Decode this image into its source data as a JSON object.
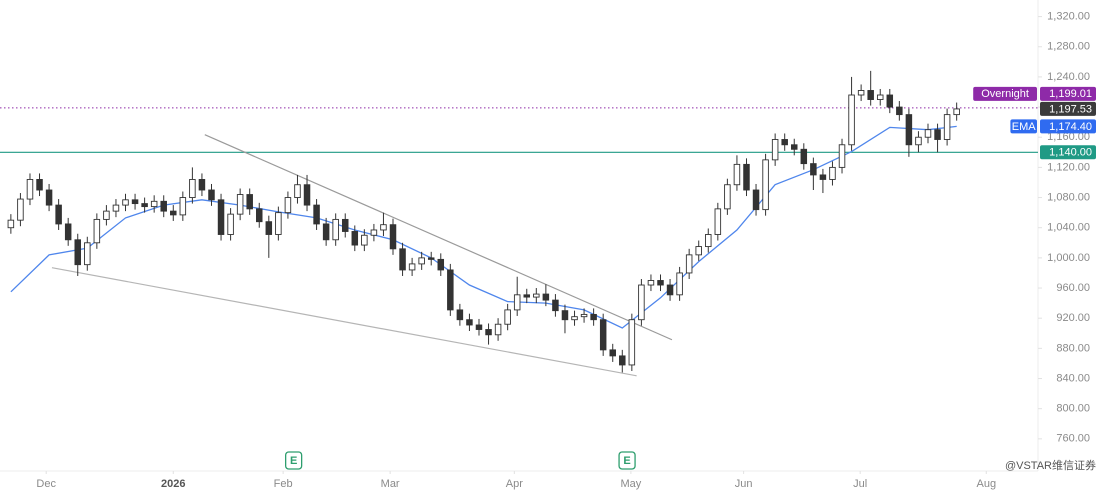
{
  "chart_data": {
    "type": "candlestick",
    "xlim": [
      -0.3,
      107.2
    ],
    "xticks": [
      {
        "value": 3.7,
        "label": "Dec"
      },
      {
        "value": 17,
        "label": "2026"
      },
      {
        "value": 28.5,
        "label": "Feb"
      },
      {
        "value": 39.7,
        "label": "Mar"
      },
      {
        "value": 52.7,
        "label": "Apr"
      },
      {
        "value": 64.9,
        "label": "May"
      },
      {
        "value": 76.7,
        "label": "Jun"
      },
      {
        "value": 88.9,
        "label": "Jul"
      },
      {
        "value": 102.1,
        "label": "Aug"
      }
    ],
    "ylim": [
      720,
      1342
    ],
    "yticks": [
      {
        "value": 760,
        "label": "760.00"
      },
      {
        "value": 800,
        "label": "800.00"
      },
      {
        "value": 840,
        "label": "840.00"
      },
      {
        "value": 880,
        "label": "880.00"
      },
      {
        "value": 920,
        "label": "920.00"
      },
      {
        "value": 960,
        "label": "960.00"
      },
      {
        "value": 1000,
        "label": "1,000.00"
      },
      {
        "value": 1040,
        "label": "1,040.00"
      },
      {
        "value": 1080,
        "label": "1,080.00"
      },
      {
        "value": 1120,
        "label": "1,120.00"
      },
      {
        "value": 1160,
        "label": "1,160.00"
      },
      {
        "value": 1200,
        "label": "1,200.00"
      },
      {
        "value": 1240,
        "label": "1,240.00"
      },
      {
        "value": 1280,
        "label": "1,280.00"
      },
      {
        "value": 1320,
        "label": "1,320.00"
      }
    ],
    "up_color": "#ffffff",
    "down_color": "#333333",
    "wick_color": "#333333",
    "open": [
      1040,
      1050,
      1078,
      1104,
      1090,
      1070,
      1045,
      1024,
      991,
      1020,
      1051,
      1062,
      1070,
      1077,
      1072,
      1068,
      1075,
      1062,
      1057,
      1080,
      1104,
      1090,
      1077,
      1031,
      1058,
      1084,
      1065,
      1048,
      1031,
      1060,
      1080,
      1097,
      1070,
      1045,
      1024,
      1051,
      1035,
      1017,
      1030,
      1037,
      1044,
      1012,
      984,
      992,
      1000,
      998,
      984,
      931,
      918,
      911,
      905,
      898,
      912,
      931,
      951,
      948,
      952,
      944,
      930,
      918,
      922,
      925,
      918,
      878,
      870,
      858,
      918,
      964,
      970,
      964,
      951,
      980,
      1004,
      1015,
      1031,
      1065,
      1097,
      1124,
      1090,
      1064,
      1130,
      1157,
      1150,
      1144,
      1125,
      1110,
      1104,
      1120,
      1150,
      1216,
      1222,
      1210,
      1216,
      1200,
      1190,
      1150,
      1160,
      1170,
      1157,
      1190
    ],
    "high": [
      1058,
      1086,
      1112,
      1112,
      1098,
      1078,
      1053,
      1032,
      1028,
      1059,
      1070,
      1078,
      1085,
      1085,
      1080,
      1083,
      1083,
      1070,
      1088,
      1120,
      1112,
      1098,
      1085,
      1066,
      1092,
      1092,
      1073,
      1056,
      1068,
      1088,
      1110,
      1110,
      1078,
      1053,
      1059,
      1059,
      1043,
      1038,
      1045,
      1060,
      1052,
      1020,
      1000,
      1008,
      1008,
      1006,
      992,
      939,
      926,
      919,
      913,
      920,
      939,
      975,
      959,
      960,
      965,
      952,
      938,
      930,
      933,
      933,
      926,
      886,
      878,
      926,
      972,
      978,
      978,
      972,
      988,
      1012,
      1023,
      1039,
      1073,
      1105,
      1136,
      1132,
      1098,
      1138,
      1165,
      1165,
      1158,
      1152,
      1133,
      1118,
      1128,
      1158,
      1240,
      1230,
      1248,
      1224,
      1224,
      1208,
      1198,
      1168,
      1178,
      1178,
      1198,
      1206
    ],
    "low": [
      1032,
      1042,
      1070,
      1082,
      1062,
      1037,
      1016,
      976,
      983,
      1012,
      1043,
      1054,
      1062,
      1064,
      1060,
      1060,
      1054,
      1049,
      1049,
      1072,
      1082,
      1069,
      1023,
      1023,
      1050,
      1057,
      1040,
      1000,
      1023,
      1052,
      1072,
      1062,
      1037,
      1016,
      1016,
      1027,
      1009,
      1009,
      1022,
      1029,
      1004,
      976,
      976,
      984,
      990,
      976,
      923,
      910,
      903,
      897,
      885,
      890,
      904,
      923,
      940,
      940,
      936,
      922,
      900,
      910,
      914,
      910,
      870,
      862,
      848,
      850,
      910,
      956,
      956,
      943,
      943,
      972,
      996,
      1007,
      1023,
      1057,
      1089,
      1082,
      1056,
      1056,
      1122,
      1142,
      1136,
      1117,
      1090,
      1086,
      1096,
      1112,
      1142,
      1208,
      1202,
      1202,
      1192,
      1182,
      1134,
      1140,
      1152,
      1140,
      1149,
      1182
    ],
    "close": [
      1050,
      1078,
      1104,
      1090,
      1070,
      1045,
      1024,
      991,
      1020,
      1051,
      1062,
      1070,
      1077,
      1072,
      1068,
      1075,
      1062,
      1057,
      1080,
      1104,
      1090,
      1077,
      1031,
      1058,
      1084,
      1065,
      1048,
      1031,
      1060,
      1080,
      1097,
      1070,
      1045,
      1024,
      1051,
      1035,
      1017,
      1030,
      1037,
      1044,
      1012,
      984,
      992,
      1000,
      998,
      984,
      931,
      918,
      911,
      905,
      898,
      912,
      931,
      951,
      948,
      952,
      944,
      930,
      918,
      922,
      925,
      918,
      878,
      870,
      858,
      918,
      964,
      970,
      964,
      951,
      980,
      1004,
      1015,
      1031,
      1065,
      1097,
      1124,
      1090,
      1064,
      1130,
      1157,
      1150,
      1144,
      1125,
      1110,
      1104,
      1120,
      1150,
      1216,
      1222,
      1210,
      1216,
      1200,
      1190,
      1150,
      1160,
      1170,
      1157,
      1190,
      1197.53
    ],
    "ema": {
      "name": "EMA",
      "color": "#4f86ec",
      "x": [
        0,
        4,
        8,
        12,
        16,
        20,
        24,
        28,
        32,
        36,
        40,
        44,
        48,
        52,
        56,
        60,
        64,
        68,
        72,
        76,
        80,
        84,
        88,
        92,
        96,
        99
      ],
      "values": [
        955,
        1004,
        1013,
        1053,
        1070,
        1077,
        1070,
        1061,
        1053,
        1037,
        1024,
        1000,
        964,
        942,
        940,
        931,
        907,
        947,
        995,
        1037,
        1097,
        1117,
        1141,
        1173,
        1170,
        1174.4
      ]
    },
    "trendlines": [
      {
        "color": "#9a9a9a",
        "x": [
          20.3,
          69.2
        ],
        "values": [
          1163.4,
          891.4
        ]
      },
      {
        "color": "#b5b5b5",
        "x": [
          4.3,
          65.5
        ],
        "values": [
          987,
          843.6
        ]
      }
    ],
    "price_lines": [
      {
        "text": "Overnight",
        "value": 1199.01,
        "label": "1,199.01",
        "color": "#8e2aa8",
        "line": "dotted"
      },
      {
        "value": 1197.53,
        "label": "1,197.53",
        "color": "#3b3b3b"
      },
      {
        "text": "EMA",
        "value": 1174.4,
        "label": "1,174.40",
        "color": "#2f6bf0"
      },
      {
        "value": 1140,
        "label": "1,140.00",
        "color": "#1f9a85",
        "line": "solid"
      }
    ],
    "events": [
      {
        "x": 29.6,
        "label": "E"
      },
      {
        "x": 64.5,
        "label": "E"
      }
    ],
    "watermark": "@VSTAR维信证券"
  }
}
